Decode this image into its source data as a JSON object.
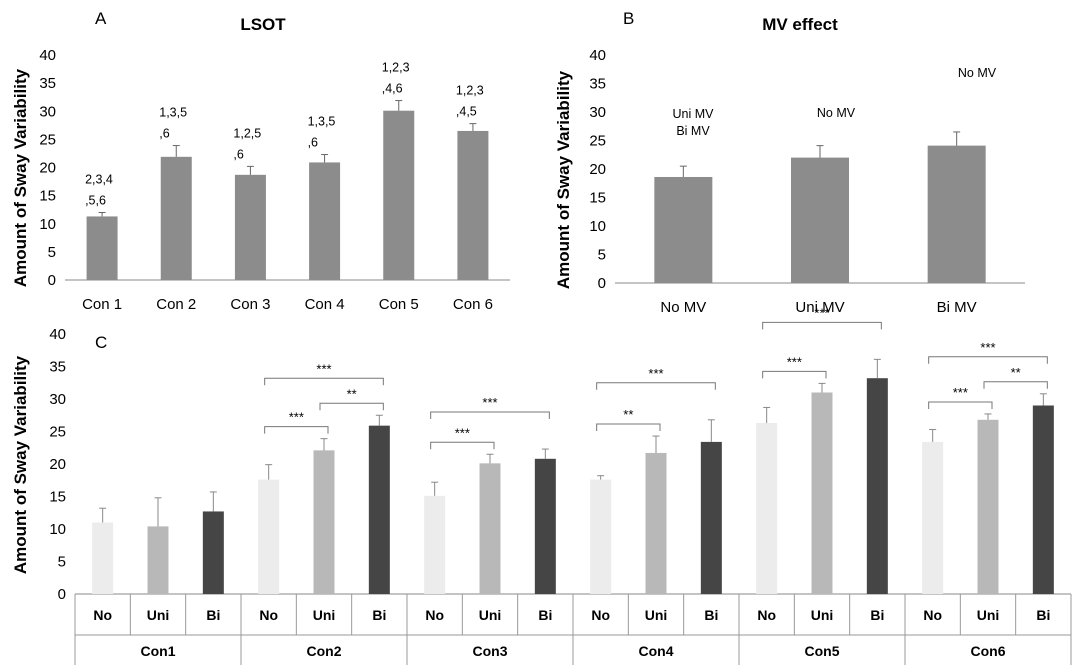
{
  "chart_data": [
    {
      "panel": "A",
      "type": "bar",
      "title": "LSOT",
      "ylabel": "Amount of Sway Variability",
      "ylim": [
        0,
        40
      ],
      "yticks": [
        0,
        5,
        10,
        15,
        20,
        25,
        30,
        35,
        40
      ],
      "categories": [
        "Con 1",
        "Con 2",
        "Con 3",
        "Con 4",
        "Con 5",
        "Con 6"
      ],
      "values": [
        11.3,
        21.9,
        18.7,
        20.9,
        30.1,
        26.5
      ],
      "errors": [
        0.7,
        2.0,
        1.5,
        1.4,
        1.8,
        1.3
      ],
      "annotations": [
        [
          "2,3,4",
          ",5,6"
        ],
        [
          "1,3,5",
          ",6"
        ],
        [
          "1,2,5",
          ",6"
        ],
        [
          "1,3,5",
          ",6"
        ],
        [
          "1,2,3",
          ",4,6"
        ],
        [
          "1,2,3",
          ",4,5"
        ]
      ],
      "color": "#8c8c8c"
    },
    {
      "panel": "B",
      "type": "bar",
      "title": "MV effect",
      "ylabel": "Amount of Sway Variability",
      "ylim": [
        0,
        40
      ],
      "yticks": [
        0,
        5,
        10,
        15,
        20,
        25,
        30,
        35,
        40
      ],
      "categories": [
        "No MV",
        "Uni MV",
        "Bi MV"
      ],
      "values": [
        18.6,
        22.0,
        24.1
      ],
      "errors": [
        1.9,
        2.1,
        2.4
      ],
      "annotations": [
        [
          "Uni MV",
          "Bi MV"
        ],
        [
          "No MV"
        ],
        [
          "No MV"
        ]
      ],
      "color": "#8c8c8c"
    },
    {
      "panel": "C",
      "type": "bar",
      "ylabel": "Amount of Sway Variability",
      "ylim": [
        0,
        40
      ],
      "yticks": [
        0,
        5,
        10,
        15,
        20,
        25,
        30,
        35,
        40
      ],
      "groups": [
        "Con1",
        "Con2",
        "Con3",
        "Con4",
        "Con5",
        "Con6"
      ],
      "subcategories": [
        "No",
        "Uni",
        "Bi"
      ],
      "colors": [
        "#ececec",
        "#b8b8b8",
        "#454545"
      ],
      "values": [
        [
          11.0,
          10.4,
          12.7
        ],
        [
          17.6,
          22.1,
          25.9
        ],
        [
          15.1,
          20.1,
          20.8
        ],
        [
          17.6,
          21.7,
          23.4
        ],
        [
          26.3,
          31.0,
          33.2
        ],
        [
          23.4,
          26.8,
          29.0
        ]
      ],
      "errors": [
        [
          2.2,
          4.4,
          3.0
        ],
        [
          2.3,
          1.8,
          1.6
        ],
        [
          2.1,
          1.4,
          1.5
        ],
        [
          0.6,
          2.6,
          3.4
        ],
        [
          2.4,
          1.4,
          2.9
        ],
        [
          1.9,
          0.9,
          1.8
        ]
      ],
      "significance": [
        {
          "group": 1,
          "from": 0,
          "to": 1,
          "label": "***",
          "level": 0
        },
        {
          "group": 1,
          "from": 1,
          "to": 2,
          "label": "**",
          "level": 0
        },
        {
          "group": 1,
          "from": 0,
          "to": 2,
          "label": "***",
          "level": 1
        },
        {
          "group": 2,
          "from": 0,
          "to": 1,
          "label": "***",
          "level": 0
        },
        {
          "group": 2,
          "from": 0,
          "to": 2,
          "label": "***",
          "level": 1
        },
        {
          "group": 3,
          "from": 0,
          "to": 1,
          "label": "**",
          "level": 0
        },
        {
          "group": 3,
          "from": 0,
          "to": 2,
          "label": "***",
          "level": 1
        },
        {
          "group": 4,
          "from": 0,
          "to": 1,
          "label": "***",
          "level": 0
        },
        {
          "group": 4,
          "from": 0,
          "to": 2,
          "label": "***",
          "level": 1
        },
        {
          "group": 5,
          "from": 0,
          "to": 1,
          "label": "***",
          "level": 0
        },
        {
          "group": 5,
          "from": 1,
          "to": 2,
          "label": "**",
          "level": 0
        },
        {
          "group": 5,
          "from": 0,
          "to": 2,
          "label": "***",
          "level": 1
        }
      ]
    }
  ]
}
